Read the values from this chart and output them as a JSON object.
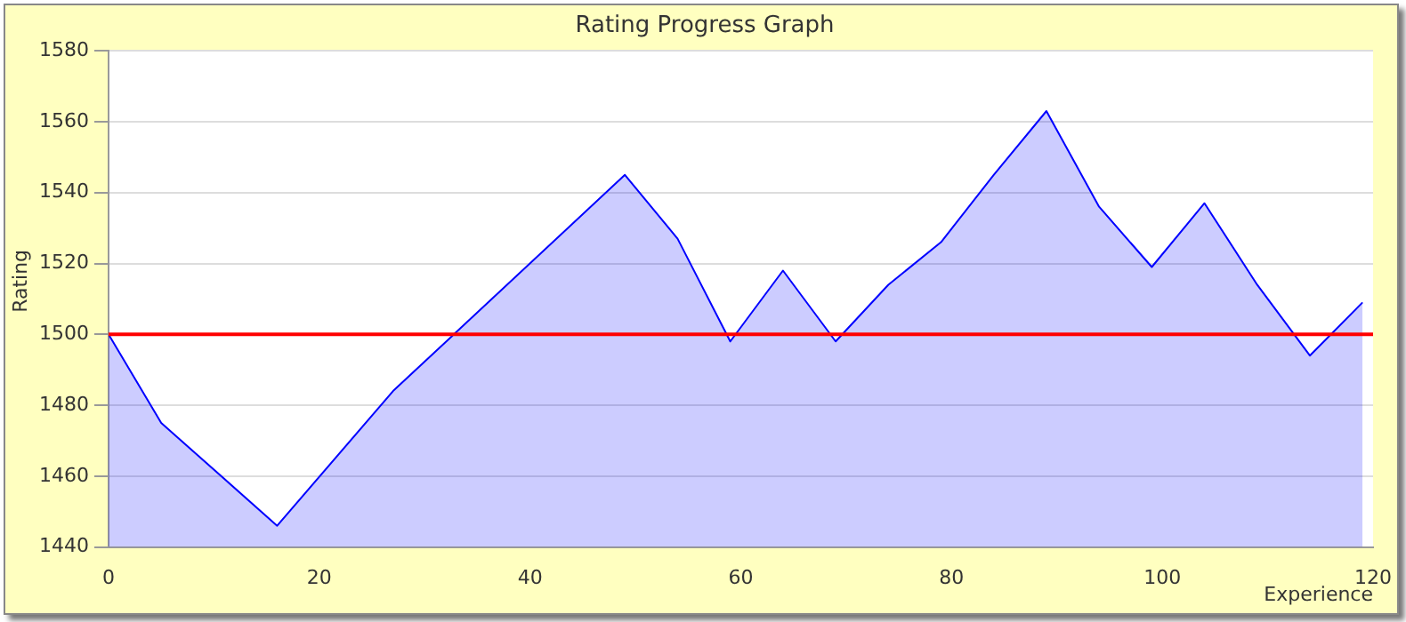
{
  "chart_data": {
    "type": "area",
    "title": "Rating Progress Graph",
    "xlabel": "Experience",
    "ylabel": "Rating",
    "x": [
      0,
      5,
      16,
      27,
      49,
      54,
      59,
      64,
      69,
      74,
      79,
      84,
      89,
      94,
      99,
      104,
      109,
      114,
      119
    ],
    "series": [
      {
        "color": "#0000ff",
        "values": [
          1500,
          1475,
          1446,
          1484,
          1545,
          1527,
          1498,
          1518,
          1498,
          1514,
          1526,
          1545,
          1563,
          1536,
          1519,
          1537,
          1514,
          1494,
          1509
        ]
      }
    ],
    "xlim": [
      0,
      120
    ],
    "xticks": [
      0,
      20,
      40,
      60,
      80,
      100,
      120
    ],
    "ylim": [
      1440,
      1580
    ],
    "yticks": [
      1440,
      1460,
      1480,
      1500,
      1520,
      1540,
      1560,
      1580
    ],
    "ref_lines": [
      {
        "axis": "y",
        "value": 1500,
        "color": "#ff0000"
      }
    ],
    "grid": "y",
    "marker": "none",
    "line_style": "solid"
  }
}
